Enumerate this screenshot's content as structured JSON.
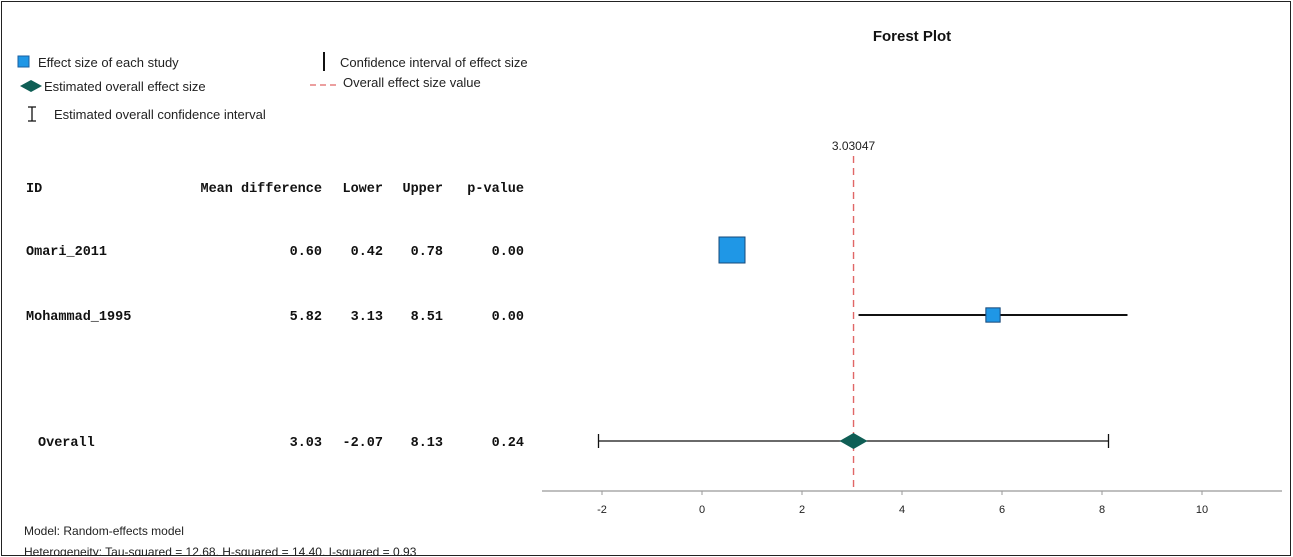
{
  "chart_data": {
    "type": "forest",
    "title": "Forest Plot",
    "legend": {
      "placement": "top-left",
      "items": [
        {
          "key": "study",
          "label": "Effect size of each study",
          "symbol": "square",
          "color": "#1f97e6"
        },
        {
          "key": "ci",
          "label": "Confidence interval of effect size",
          "symbol": "vertical-line",
          "color": "#111111"
        },
        {
          "key": "overall",
          "label": "Estimated overall effect size",
          "symbol": "diamond",
          "color": "#0f5e55"
        },
        {
          "key": "overall_value",
          "label": "Overall effect size value",
          "symbol": "dashed-line",
          "color": "#e06666"
        },
        {
          "key": "overall_ci",
          "label": "Estimated overall confidence interval",
          "symbol": "i-beam",
          "color": "#111111"
        }
      ]
    },
    "columns": [
      "ID",
      "Mean difference",
      "Lower",
      "Upper",
      "p-value"
    ],
    "studies": [
      {
        "id": "Omari_2011",
        "mean": 0.6,
        "lower": 0.42,
        "upper": 0.78,
        "p": 0.0,
        "mean_text": "0.60",
        "lower_text": "0.42",
        "upper_text": "0.78",
        "p_text": "0.00",
        "relative_weight": 1.0
      },
      {
        "id": "Mohammad_1995",
        "mean": 5.82,
        "lower": 3.13,
        "upper": 8.51,
        "p": 0.0,
        "mean_text": "5.82",
        "lower_text": "3.13",
        "upper_text": "8.51",
        "p_text": "0.00",
        "relative_weight": 0.35
      }
    ],
    "overall": {
      "label": "Overall",
      "mean": 3.03,
      "lower": -2.07,
      "upper": 8.13,
      "p": 0.24,
      "mean_text": "3.03",
      "lower_text": "-2.07",
      "upper_text": "8.13",
      "p_text": "0.24"
    },
    "overall_value": 3.03047,
    "overall_value_text": "3.03047",
    "x_ticks": [
      -2,
      0,
      2,
      4,
      6,
      8,
      10
    ],
    "xlim": [
      -2.8,
      12.7
    ],
    "colors": {
      "study": "#1f97e6",
      "overall": "#0f5e55",
      "reference_line": "#e06666",
      "lines": "#111111",
      "axis": "#999999"
    }
  },
  "footer": {
    "model": "Model: Random-effects model",
    "heterogeneity": "Heterogeneity: Tau-squared = 12.68, H-squared = 14.40, I-squared = 0.93"
  }
}
